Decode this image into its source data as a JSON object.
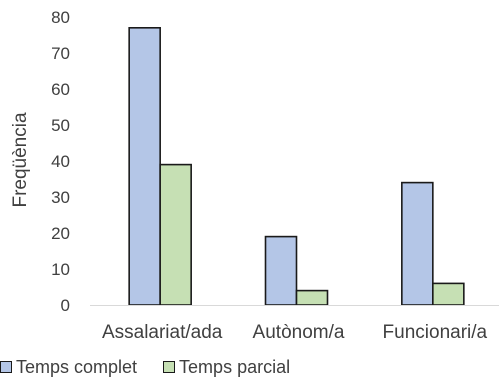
{
  "chart_data": {
    "type": "bar",
    "title": "",
    "xlabel": "",
    "ylabel": "Freqüència",
    "categories": [
      "Assalariat/ada",
      "Autònom/a",
      "Funcionari/a"
    ],
    "series": [
      {
        "name": "Temps complet",
        "values": [
          77,
          19,
          34
        ],
        "color": "#b4c6e7"
      },
      {
        "name": "Temps parcial",
        "values": [
          39,
          4,
          6
        ],
        "color": "#c6e0b4"
      }
    ],
    "ylim": [
      0,
      80
    ],
    "yticks": [
      0,
      10,
      20,
      30,
      40,
      50,
      60,
      70,
      80
    ],
    "grid": false,
    "legend_position": "bottom-left"
  }
}
